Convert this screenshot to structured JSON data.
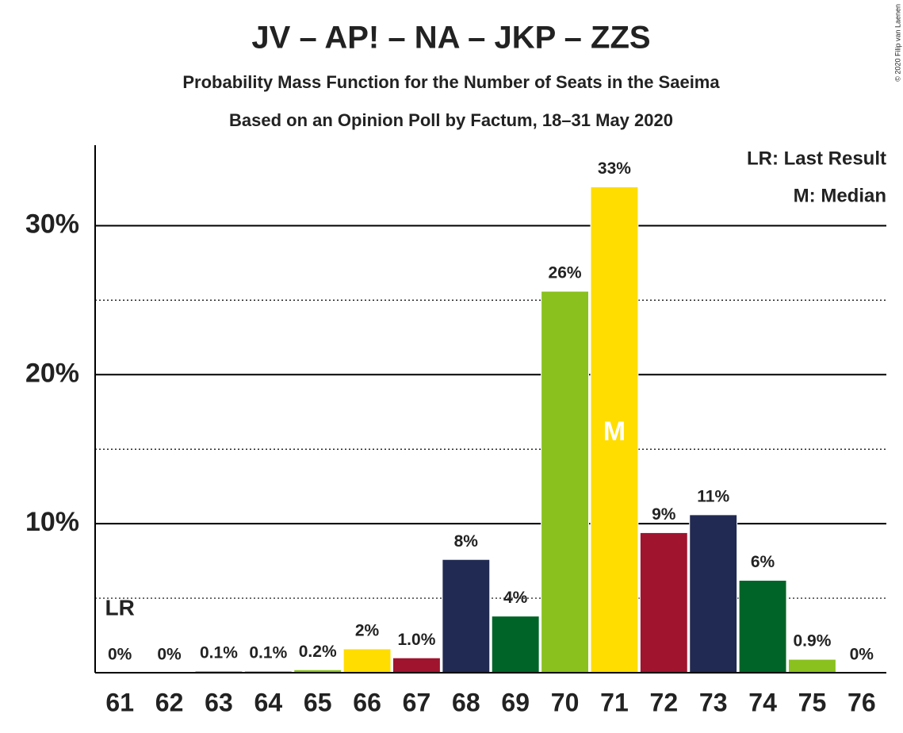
{
  "chart_data": {
    "type": "bar",
    "title": "JV – AP! – NA – JKP – ZZS",
    "subtitle": "Probability Mass Function for the Number of Seats in the Saeima",
    "subtitle2": "Based on an Opinion Poll by Factum, 18–31 May 2020",
    "copyright": "© 2020 Filip van Laenen",
    "legend": [
      "LR: Last Result",
      "M: Median"
    ],
    "last_result": {
      "text": "LR",
      "at": 61
    },
    "median": {
      "text": "M",
      "at": 71
    },
    "categories": [
      61,
      62,
      63,
      64,
      65,
      66,
      67,
      68,
      69,
      70,
      71,
      72,
      73,
      74,
      75,
      76
    ],
    "values": [
      0,
      0,
      0.1,
      0.1,
      0.2,
      1.6,
      1.0,
      7.6,
      3.8,
      25.6,
      32.6,
      9.4,
      10.6,
      6.2,
      0.9,
      0
    ],
    "value_labels": [
      "0%",
      "0%",
      "0.1%",
      "0.1%",
      "0.2%",
      "2%",
      "1.0%",
      "8%",
      "4%",
      "26%",
      "33%",
      "9%",
      "11%",
      "6%",
      "0.9%",
      "0%"
    ],
    "colors": [
      "#FFDD00",
      "#A0142E",
      "#212A52",
      "#006428",
      "#8AC11E",
      "#FFDD00",
      "#A0142E",
      "#212A52",
      "#006428",
      "#8AC11E",
      "#FFDD00",
      "#A0142E",
      "#212A52",
      "#006428",
      "#8AC11E",
      "#FFDD00"
    ],
    "ylim": [
      0,
      35.4
    ],
    "yticks": [
      {
        "value": 10,
        "label": "10%"
      },
      {
        "value": 20,
        "label": "20%"
      },
      {
        "value": 30,
        "label": "30%"
      }
    ],
    "minor_yticks": [
      5,
      15,
      25
    ],
    "grid": true
  }
}
